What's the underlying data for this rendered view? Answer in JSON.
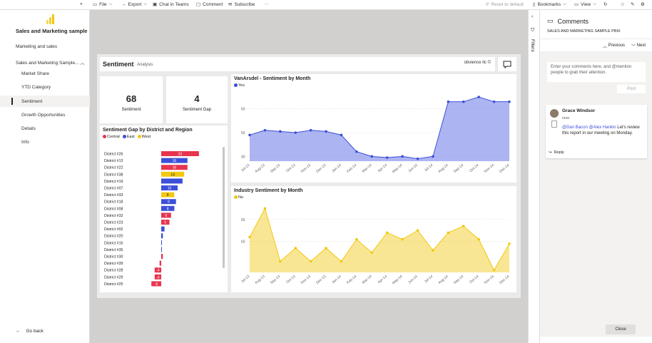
{
  "toolbar": {
    "file": "File",
    "export": "Export",
    "chat": "Chat in Teams",
    "comment": "Comment",
    "subscribe": "Subscribe",
    "more": "···",
    "reset": "Reset to default",
    "bookmarks": "Bookmarks",
    "view": "View"
  },
  "nav": {
    "title": "Sales and Marketing sample",
    "items": [
      "Marketing and sales",
      "Sales and Marketing Sample..."
    ],
    "pages": [
      "Market Share",
      "YTD Category",
      "Sentiment",
      "Growth Opportunities",
      "Details",
      "Info"
    ],
    "back": "Go back"
  },
  "report": {
    "title": "Sentiment",
    "subtitle": "Analysis",
    "org": "obvience llc ©",
    "kpi1": {
      "value": "68",
      "label": "Sentiment"
    },
    "kpi2": {
      "value": "4",
      "label": "Sentiment Gap"
    }
  },
  "colors": {
    "central": "#e8344e",
    "east": "#3b4fd8",
    "west": "#f2c811",
    "vanarsdel": "#6a76e8",
    "industry": "#f2c811"
  },
  "chart_data": [
    {
      "type": "bar",
      "title": "Sentiment Gap by District and Region",
      "legend": [
        "Central",
        "East",
        "West"
      ],
      "categories": [
        "District #26",
        "District #13",
        "District #22",
        "District #38",
        "District #19",
        "District #07",
        "District #33",
        "District #18",
        "District #08",
        "District #32",
        "District #23",
        "District #02",
        "District #20",
        "District #15",
        "District #35",
        "District #30",
        "District #39",
        "District #28",
        "District #29",
        "District #25"
      ],
      "values": [
        23,
        16,
        16,
        14,
        13,
        10,
        8,
        9,
        8,
        6,
        5,
        2,
        1,
        0.4,
        0.3,
        1,
        -1,
        -4,
        -4,
        -6
      ],
      "regions": [
        "Central",
        "East",
        "Central",
        "West",
        "East",
        "East",
        "West",
        "East",
        "East",
        "Central",
        "Central",
        "East",
        "East",
        "East",
        "East",
        "Central",
        "Central",
        "Central",
        "Central",
        "Central"
      ],
      "labels": [
        "23",
        "16",
        "16",
        "14",
        "",
        "10",
        "8",
        "9",
        "8",
        "6",
        "5",
        "",
        "",
        "",
        "",
        "",
        "",
        "-4",
        "-4",
        "-6"
      ]
    },
    {
      "type": "area",
      "title": "VanArsdel - Sentiment by Month",
      "legend": [
        "Yes"
      ],
      "x": [
        "Jul-13",
        "Aug-13",
        "Sep-13",
        "Oct-13",
        "Nov-13",
        "Dec-13",
        "Jan-14",
        "Feb-14",
        "Mar-14",
        "Apr-14",
        "May-14",
        "Jun-14",
        "Jul-14",
        "Aug-14",
        "Sep-14",
        "Oct-14",
        "Nov-14",
        "Dec-14"
      ],
      "values": [
        49,
        51,
        50.5,
        50,
        51,
        50.5,
        49,
        42,
        40,
        39.5,
        40,
        39,
        40,
        63,
        63,
        65,
        63,
        63
      ],
      "ylim": [
        38,
        68
      ],
      "yticks": [
        40,
        50,
        60
      ]
    },
    {
      "type": "area",
      "title": "Industry Sentiment by Month",
      "legend": [
        "No"
      ],
      "x": [
        "Jul-13",
        "Aug-13",
        "Sep-13",
        "Oct-13",
        "Nov-13",
        "Dec-13",
        "Jan-14",
        "Feb-14",
        "Mar-14",
        "Apr-14",
        "May-14",
        "Jun-14",
        "Jul-14",
        "Aug-14",
        "Sep-14",
        "Oct-14",
        "Nov-14",
        "Dec-14"
      ],
      "values": [
        61,
        67.5,
        55.5,
        58.5,
        55.5,
        58.5,
        55.5,
        60.5,
        57.5,
        62,
        60.5,
        62.5,
        58,
        62,
        63.5,
        60.5,
        53.5,
        59.5
      ],
      "ylim": [
        53,
        69
      ],
      "yticks": [
        60,
        65
      ]
    }
  ],
  "comments": {
    "title": "Comments",
    "report": "SALES AND MARKETING SAMPLE PBIX",
    "previous": "Previous",
    "next": "Next",
    "placeholder": "Enter your comments here, and @mention people to grab their attention.",
    "post": "Post",
    "author": "Grace Windsor",
    "time": "now",
    "body_mentions": "@Dan Bacon @Alex Hankin",
    "body": " Let's review this report in our meeting on Monday.",
    "reply": "Reply",
    "close": "Close"
  },
  "filters": {
    "label": "Filters"
  }
}
